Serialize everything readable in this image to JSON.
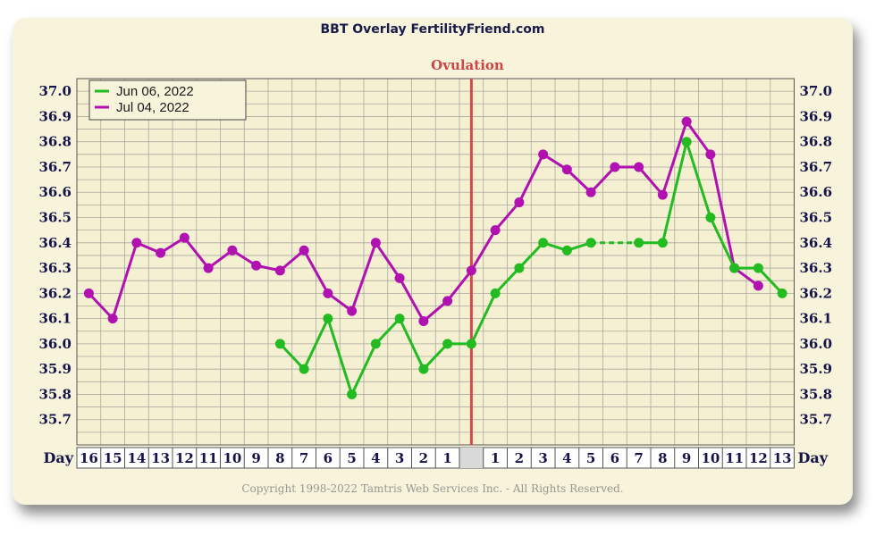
{
  "chart_data": {
    "type": "line",
    "title": "BBT Overlay FertilityFriend.com",
    "annotation": "Ovulation",
    "xlabel": "Day",
    "categories": [
      "16",
      "15",
      "14",
      "13",
      "12",
      "11",
      "10",
      "9",
      "8",
      "7",
      "6",
      "5",
      "4",
      "3",
      "2",
      "1",
      "",
      "1",
      "2",
      "3",
      "4",
      "5",
      "6",
      "7",
      "8",
      "9",
      "10",
      "11",
      "12",
      "13"
    ],
    "ovulation_index": 16,
    "ylim": [
      35.6,
      37.05
    ],
    "yticks": [
      "37.0",
      "36.9",
      "36.8",
      "36.7",
      "36.6",
      "36.5",
      "36.4",
      "36.3",
      "36.2",
      "36.1",
      "36.0",
      "35.9",
      "35.8",
      "35.7"
    ],
    "grid": true,
    "legend_position": "top-left",
    "series": [
      {
        "name": "Jun 06, 2022",
        "color": "#22bb22",
        "values": [
          null,
          null,
          null,
          null,
          null,
          null,
          null,
          null,
          36.0,
          35.9,
          36.1,
          35.8,
          36.0,
          36.1,
          35.9,
          36.0,
          36.0,
          36.2,
          36.3,
          36.4,
          36.37,
          36.4,
          null,
          36.4,
          36.4,
          36.8,
          36.5,
          36.3,
          36.3,
          36.2
        ],
        "dashed_gap": [
          21,
          23
        ]
      },
      {
        "name": "Jul 04, 2022",
        "color": "#b011b0",
        "values": [
          36.2,
          36.1,
          36.4,
          36.36,
          36.42,
          36.3,
          36.37,
          36.31,
          36.29,
          36.37,
          36.2,
          36.13,
          36.4,
          36.26,
          36.09,
          36.17,
          36.29,
          36.45,
          36.56,
          36.75,
          36.69,
          36.6,
          36.7,
          36.7,
          36.59,
          36.88,
          36.75,
          36.3,
          36.23,
          null
        ]
      }
    ]
  },
  "footer": {
    "copyright": "Copyright 1998-2022 Tamtris Web Services Inc. - All Rights Reserved."
  }
}
